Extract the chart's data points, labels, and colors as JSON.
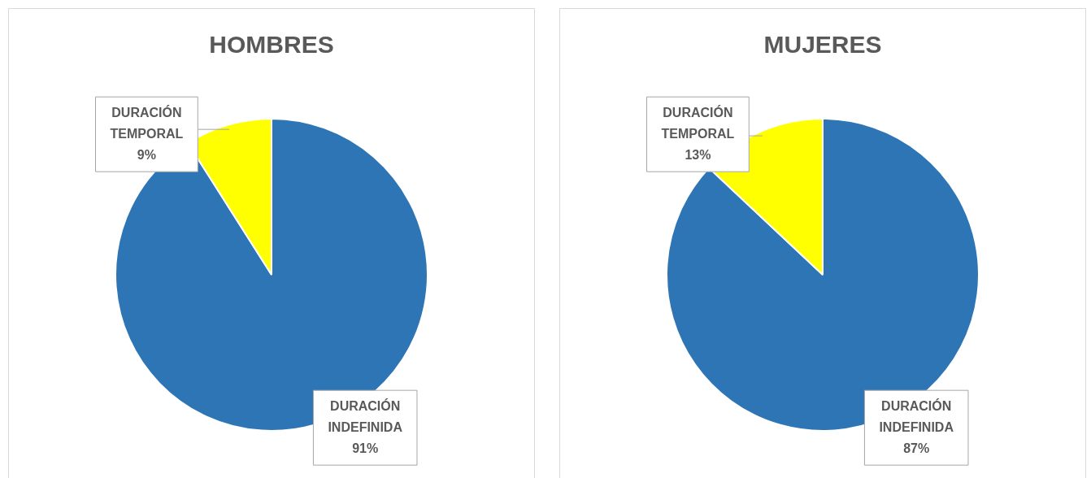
{
  "chart_data": [
    {
      "type": "pie",
      "title": "HOMBRES",
      "categories": [
        "DURACIÓN INDEFINIDA",
        "DURACIÓN TEMPORAL"
      ],
      "values": [
        91,
        9
      ],
      "colors": [
        "#2e75b6",
        "#ffff00"
      ],
      "value_labels": [
        "91%",
        "9%"
      ],
      "legend": false
    },
    {
      "type": "pie",
      "title": "MUJERES",
      "categories": [
        "DURACIÓN INDEFINIDA",
        "DURACIÓN TEMPORAL"
      ],
      "values": [
        87,
        13
      ],
      "colors": [
        "#2e75b6",
        "#ffff00"
      ],
      "value_labels": [
        "87%",
        "13%"
      ],
      "legend": false
    }
  ]
}
